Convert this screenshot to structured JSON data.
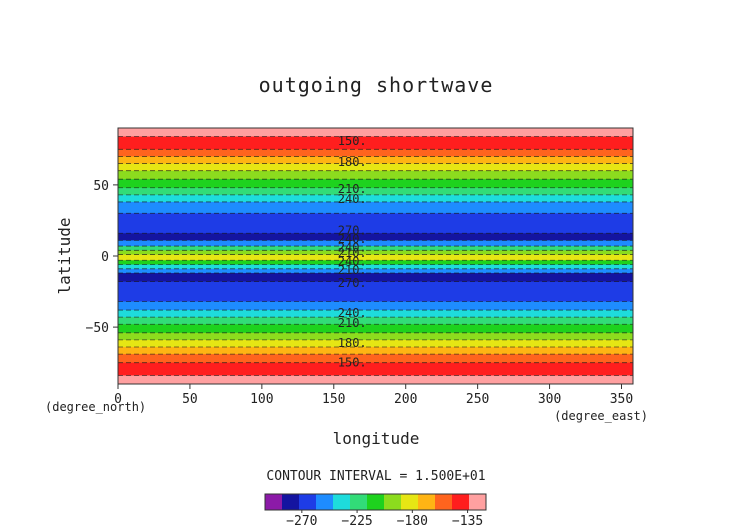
{
  "chart_data": {
    "type": "heatmap",
    "title": "outgoing shortwave",
    "xlabel": "longitude",
    "ylabel": "latitude",
    "x_unit": "(degree_east)",
    "y_unit": "(degree_north)",
    "xlim": [
      0,
      358
    ],
    "ylim": [
      -90,
      90
    ],
    "x_ticks": [
      "0",
      "50",
      "100",
      "150",
      "200",
      "250",
      "300",
      "350"
    ],
    "y_ticks": [
      "50",
      "0",
      "−50"
    ],
    "contour_interval_text": "CONTOUR INTERVAL = 1.500E+01",
    "colorbar_ticks": [
      "−270",
      "−225",
      "−180",
      "−135"
    ],
    "colorbar_levels": [
      -300,
      -285,
      -270,
      -255,
      -240,
      -225,
      -210,
      -195,
      -180,
      -165,
      -150,
      -135,
      -120
    ],
    "colorbar_colors": [
      "#8c1aa8",
      "#1414a0",
      "#1e3ce6",
      "#1e8cff",
      "#1edcdc",
      "#32dc78",
      "#1ed21e",
      "#8cdc1e",
      "#e6e614",
      "#ffb414",
      "#ff641e",
      "#ff1e1e",
      "#ffa0a0"
    ],
    "contour_labels": [
      {
        "text": "150.",
        "lat": 81
      },
      {
        "text": "180.",
        "lat": 66
      },
      {
        "text": "210.",
        "lat": 47
      },
      {
        "text": "240.",
        "lat": 40
      },
      {
        "text": "270.",
        "lat": 18
      },
      {
        "text": "240.",
        "lat": 12
      },
      {
        "text": "240.",
        "lat": 6
      },
      {
        "text": "210.",
        "lat": 2
      },
      {
        "text": "240.",
        "lat": -4
      },
      {
        "text": "210.",
        "lat": -10
      },
      {
        "text": "270.",
        "lat": -19
      },
      {
        "text": "240.",
        "lat": -40
      },
      {
        "text": "210.",
        "lat": -47
      },
      {
        "text": "180.",
        "lat": -61
      },
      {
        "text": "150.",
        "lat": -75
      }
    ],
    "contour_label_lon": 135,
    "bands": [
      {
        "from": 90,
        "to": 84,
        "value": -120
      },
      {
        "from": 84,
        "to": 75,
        "value": -135
      },
      {
        "from": 75,
        "to": 70,
        "value": -150
      },
      {
        "from": 70,
        "to": 65,
        "value": -165
      },
      {
        "from": 65,
        "to": 60,
        "value": -180
      },
      {
        "from": 60,
        "to": 54,
        "value": -195
      },
      {
        "from": 54,
        "to": 48,
        "value": -210
      },
      {
        "from": 48,
        "to": 43,
        "value": -225
      },
      {
        "from": 43,
        "to": 38,
        "value": -240
      },
      {
        "from": 38,
        "to": 30,
        "value": -255
      },
      {
        "from": 30,
        "to": 16,
        "value": -270
      },
      {
        "from": 16,
        "to": 11,
        "value": -285
      },
      {
        "from": 11,
        "to": 7,
        "value": -255
      },
      {
        "from": 7,
        "to": 4,
        "value": -225
      },
      {
        "from": 4,
        "to": 1,
        "value": -195
      },
      {
        "from": 1,
        "to": -3,
        "value": -180
      },
      {
        "from": -3,
        "to": -6,
        "value": -210
      },
      {
        "from": -6,
        "to": -9,
        "value": -240
      },
      {
        "from": -9,
        "to": -12,
        "value": -255
      },
      {
        "from": -12,
        "to": -18,
        "value": -285
      },
      {
        "from": -18,
        "to": -32,
        "value": -270
      },
      {
        "from": -32,
        "to": -38,
        "value": -255
      },
      {
        "from": -38,
        "to": -43,
        "value": -240
      },
      {
        "from": -43,
        "to": -48,
        "value": -225
      },
      {
        "from": -48,
        "to": -54,
        "value": -210
      },
      {
        "from": -54,
        "to": -59,
        "value": -195
      },
      {
        "from": -59,
        "to": -64,
        "value": -180
      },
      {
        "from": -64,
        "to": -69,
        "value": -165
      },
      {
        "from": -69,
        "to": -75,
        "value": -150
      },
      {
        "from": -75,
        "to": -84,
        "value": -135
      },
      {
        "from": -84,
        "to": -90,
        "value": -120
      }
    ]
  }
}
